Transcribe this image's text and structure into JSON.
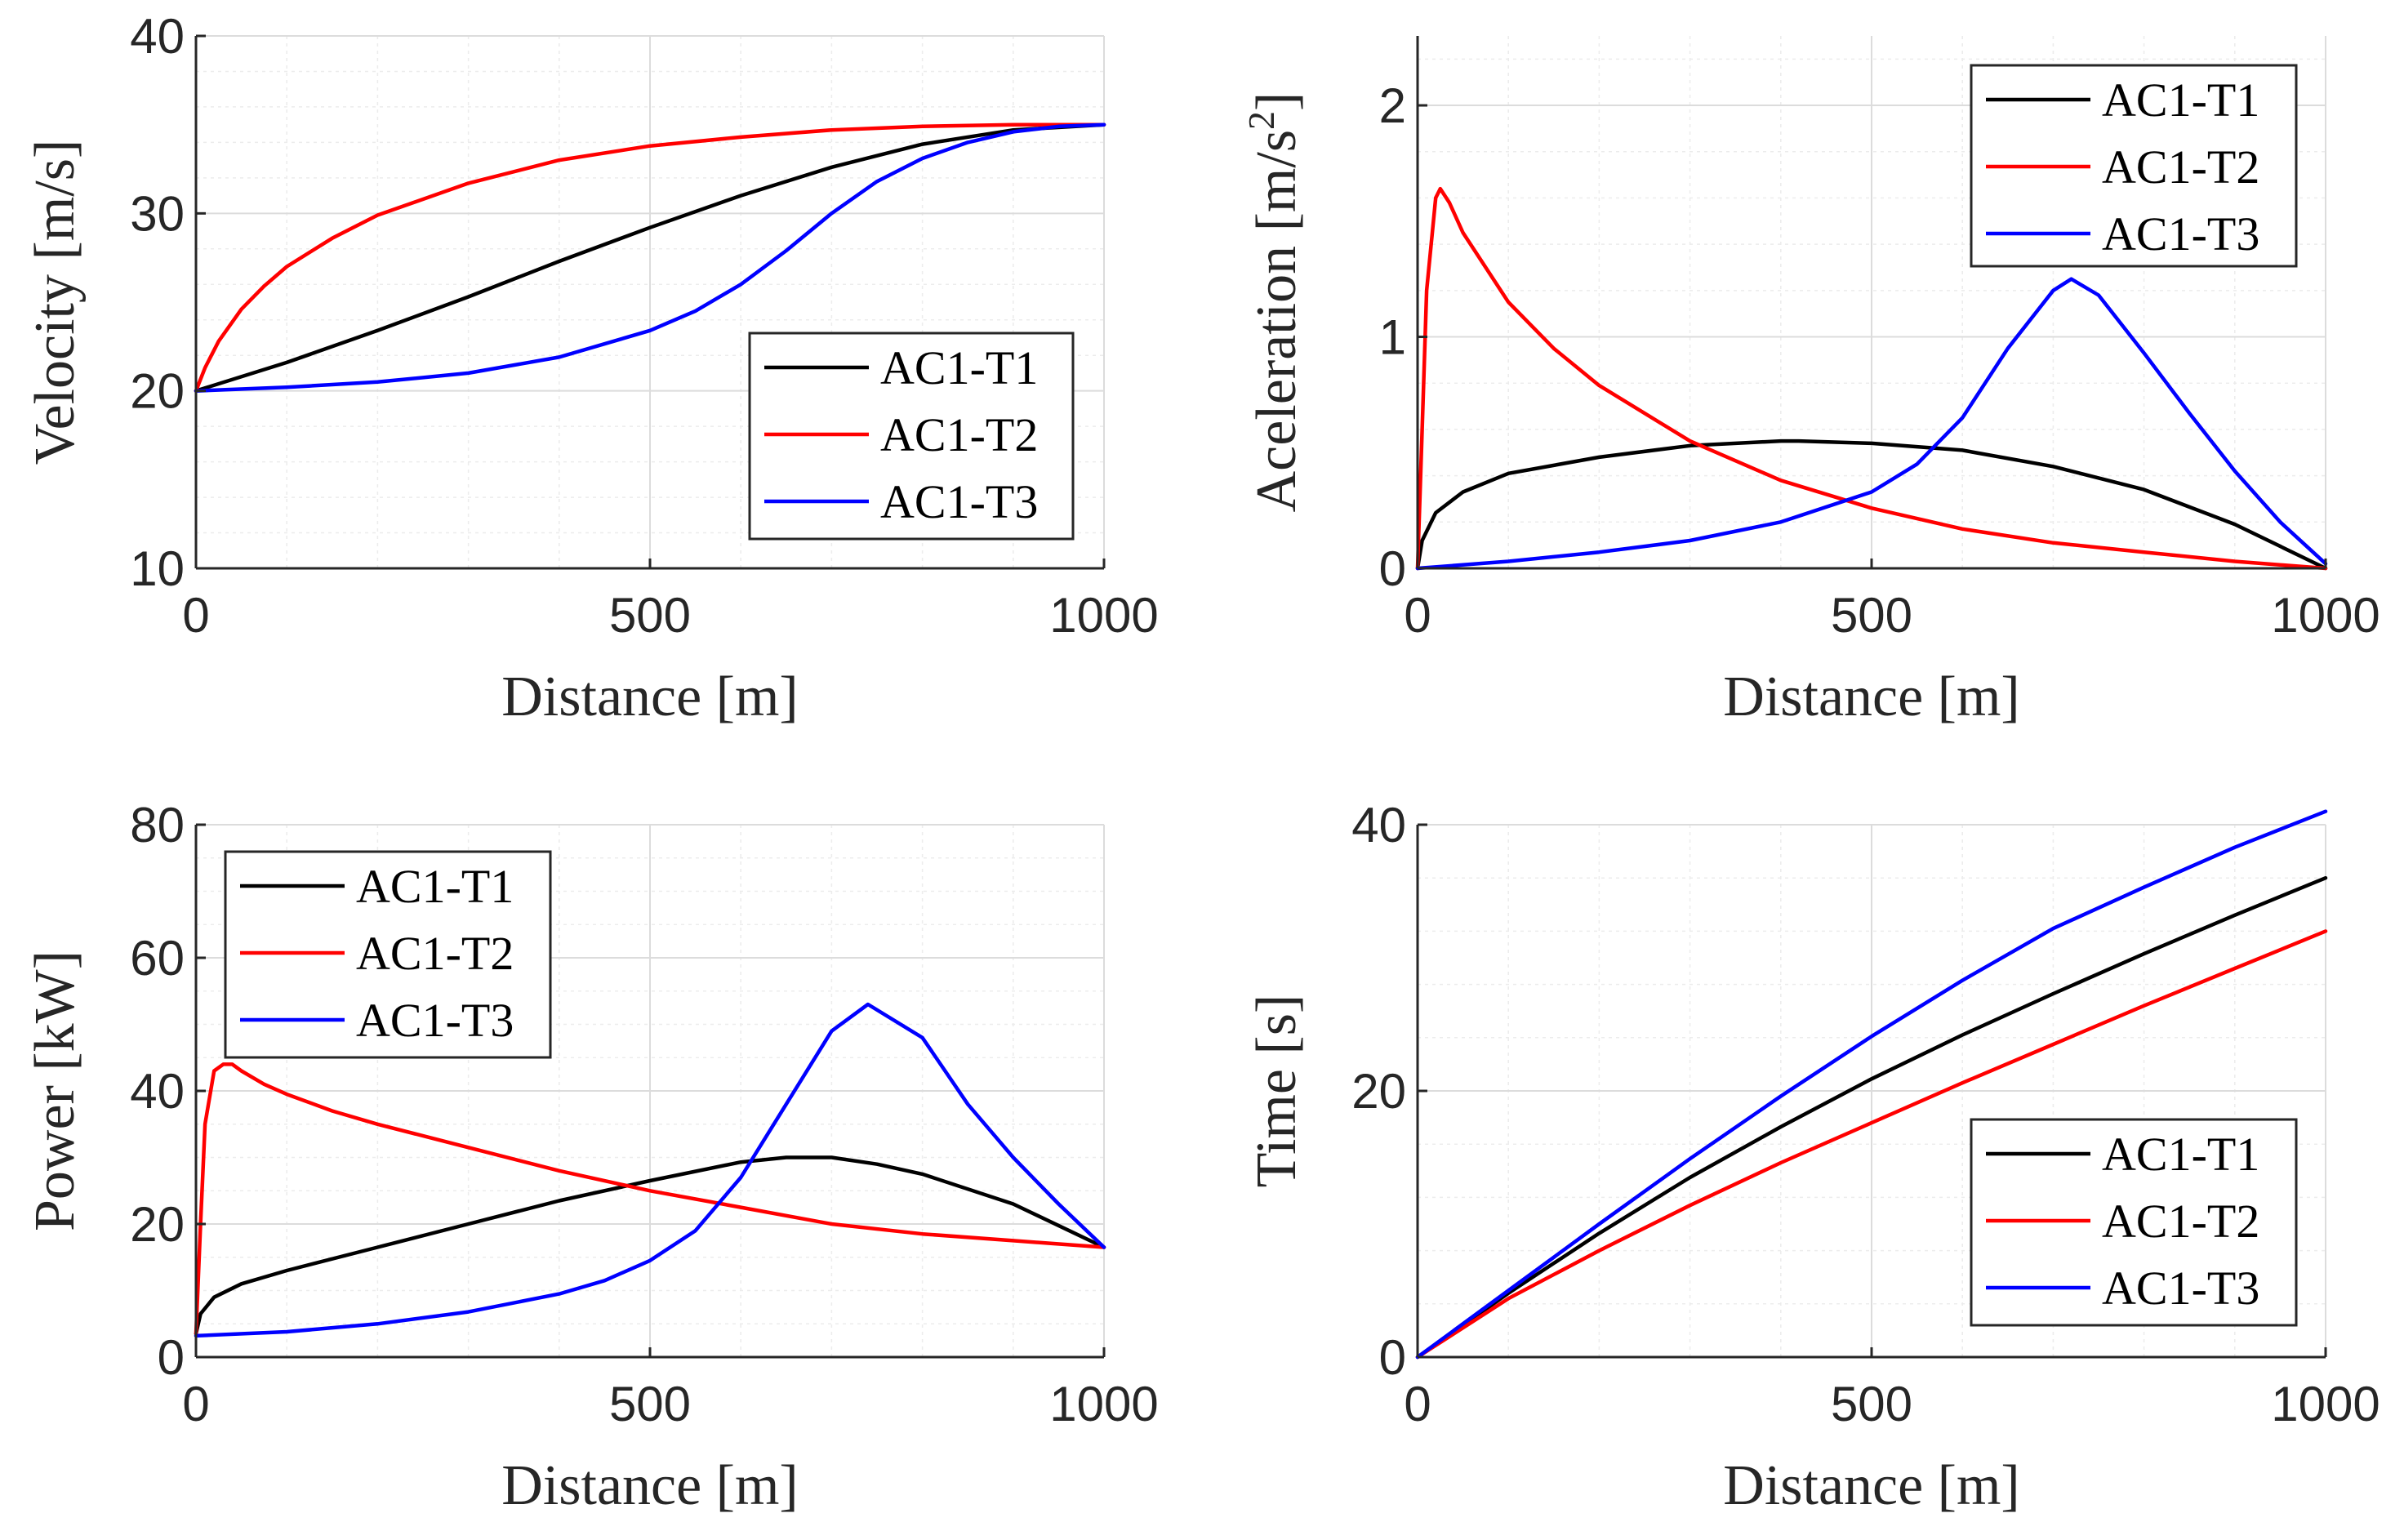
{
  "chart_data": [
    {
      "type": "line",
      "panel": "top-left",
      "xlabel": "Distance [m]",
      "ylabel": "Velocity [m/s]",
      "xlim": [
        0,
        1000
      ],
      "ylim": [
        10,
        40
      ],
      "xticks": [
        0,
        500,
        1000
      ],
      "yticks": [
        10,
        20,
        30,
        40
      ],
      "xminor_step": 100,
      "yminor_step": 2,
      "grid": true,
      "legend_position": "lower-right",
      "series": [
        {
          "name": "AC1-T1",
          "color": "#000000",
          "x": [
            0,
            100,
            200,
            300,
            400,
            500,
            600,
            700,
            800,
            900,
            1000
          ],
          "y": [
            20,
            21.6,
            23.4,
            25.3,
            27.3,
            29.2,
            31.0,
            32.6,
            33.9,
            34.7,
            35.0
          ]
        },
        {
          "name": "AC1-T2",
          "color": "#ff0000",
          "x": [
            0,
            10,
            25,
            50,
            75,
            100,
            150,
            200,
            300,
            400,
            500,
            600,
            700,
            800,
            900,
            1000
          ],
          "y": [
            20,
            21.3,
            22.8,
            24.6,
            25.9,
            27.0,
            28.6,
            29.9,
            31.7,
            33.0,
            33.8,
            34.3,
            34.7,
            34.9,
            35.0,
            35.0
          ]
        },
        {
          "name": "AC1-T3",
          "color": "#0000ff",
          "x": [
            0,
            100,
            200,
            300,
            400,
            500,
            550,
            600,
            650,
            700,
            750,
            800,
            850,
            900,
            950,
            1000
          ],
          "y": [
            20,
            20.2,
            20.5,
            21.0,
            21.9,
            23.4,
            24.5,
            26.0,
            27.9,
            30.0,
            31.8,
            33.1,
            34.0,
            34.6,
            34.9,
            35.0
          ]
        }
      ]
    },
    {
      "type": "line",
      "panel": "top-right",
      "xlabel": "Distance [m]",
      "ylabel": "Aceleration [m/s",
      "ylabel_superscript": "2",
      "ylabel_suffix": "]",
      "xlim": [
        0,
        1000
      ],
      "ylim": [
        0,
        2.3
      ],
      "xticks": [
        0,
        500,
        1000
      ],
      "yticks": [
        0,
        1,
        2
      ],
      "xminor_step": 100,
      "yminor_step": 0.2,
      "grid": true,
      "legend_position": "top-right",
      "series": [
        {
          "name": "AC1-T1",
          "color": "#000000",
          "x": [
            0,
            5,
            20,
            50,
            100,
            200,
            300,
            400,
            420,
            500,
            600,
            700,
            800,
            900,
            1000
          ],
          "y": [
            0.0,
            0.12,
            0.24,
            0.33,
            0.41,
            0.48,
            0.53,
            0.55,
            0.55,
            0.54,
            0.51,
            0.44,
            0.34,
            0.19,
            0.0
          ]
        },
        {
          "name": "AC1-T2",
          "color": "#ff0000",
          "x": [
            0,
            5,
            10,
            20,
            25,
            35,
            50,
            75,
            100,
            150,
            200,
            300,
            400,
            500,
            600,
            700,
            800,
            900,
            1000
          ],
          "y": [
            0.0,
            0.6,
            1.2,
            1.6,
            1.64,
            1.58,
            1.45,
            1.3,
            1.15,
            0.95,
            0.79,
            0.55,
            0.38,
            0.26,
            0.17,
            0.11,
            0.07,
            0.03,
            0.0
          ]
        },
        {
          "name": "AC1-T3",
          "color": "#0000ff",
          "x": [
            0,
            100,
            200,
            300,
            400,
            500,
            550,
            600,
            650,
            700,
            720,
            750,
            800,
            850,
            900,
            950,
            1000
          ],
          "y": [
            0.0,
            0.03,
            0.07,
            0.12,
            0.2,
            0.33,
            0.45,
            0.65,
            0.95,
            1.2,
            1.25,
            1.18,
            0.93,
            0.67,
            0.42,
            0.2,
            0.02
          ]
        }
      ]
    },
    {
      "type": "line",
      "panel": "bottom-left",
      "xlabel": "Distance [m]",
      "ylabel": "Power [kW]",
      "xlim": [
        0,
        1000
      ],
      "ylim": [
        0,
        80
      ],
      "xticks": [
        0,
        500,
        1000
      ],
      "yticks": [
        0,
        20,
        40,
        60,
        80
      ],
      "xminor_step": 100,
      "yminor_step": 5,
      "grid": true,
      "legend_position": "top-left",
      "series": [
        {
          "name": "AC1-T1",
          "color": "#000000",
          "x": [
            0,
            5,
            20,
            50,
            100,
            200,
            300,
            400,
            500,
            600,
            650,
            700,
            750,
            800,
            900,
            1000
          ],
          "y": [
            3.5,
            6.5,
            9.0,
            11.0,
            13.0,
            16.5,
            20.0,
            23.5,
            26.5,
            29.3,
            30.0,
            30.0,
            29.0,
            27.5,
            23.0,
            16.5
          ]
        },
        {
          "name": "AC1-T2",
          "color": "#ff0000",
          "x": [
            0,
            5,
            10,
            20,
            30,
            40,
            50,
            75,
            100,
            150,
            200,
            300,
            400,
            500,
            600,
            700,
            800,
            900,
            1000
          ],
          "y": [
            3.5,
            20.0,
            35.0,
            43.0,
            44.0,
            44.0,
            43.0,
            41.0,
            39.5,
            37.0,
            35.0,
            31.5,
            28.0,
            25.0,
            22.5,
            20.0,
            18.5,
            17.5,
            16.5
          ]
        },
        {
          "name": "AC1-T3",
          "color": "#0000ff",
          "x": [
            0,
            100,
            200,
            300,
            400,
            450,
            500,
            550,
            600,
            650,
            700,
            740,
            800,
            850,
            900,
            950,
            1000
          ],
          "y": [
            3.2,
            3.8,
            5.0,
            6.8,
            9.5,
            11.5,
            14.5,
            19.0,
            27.0,
            38.0,
            49.0,
            53.0,
            48.0,
            38.0,
            30.0,
            23.0,
            16.5
          ]
        }
      ]
    },
    {
      "type": "line",
      "panel": "bottom-right",
      "xlabel": "Distance [m]",
      "ylabel": "Time [s]",
      "xlim": [
        0,
        1000
      ],
      "ylim": [
        0,
        40
      ],
      "xticks": [
        0,
        500,
        1000
      ],
      "yticks": [
        0,
        20,
        40
      ],
      "xminor_step": 100,
      "yminor_step": 4,
      "grid": true,
      "legend_position": "bottom-right",
      "series": [
        {
          "name": "AC1-T1",
          "color": "#000000",
          "x": [
            0,
            100,
            200,
            300,
            400,
            500,
            600,
            700,
            800,
            900,
            1000
          ],
          "y": [
            0,
            4.8,
            9.3,
            13.5,
            17.3,
            20.9,
            24.2,
            27.3,
            30.3,
            33.2,
            36.0
          ]
        },
        {
          "name": "AC1-T2",
          "color": "#ff0000",
          "x": [
            0,
            100,
            200,
            300,
            400,
            500,
            600,
            700,
            800,
            900,
            1000
          ],
          "y": [
            0,
            4.4,
            8.0,
            11.4,
            14.6,
            17.6,
            20.6,
            23.5,
            26.4,
            29.2,
            32.0
          ]
        },
        {
          "name": "AC1-T3",
          "color": "#0000ff",
          "x": [
            0,
            100,
            200,
            300,
            400,
            500,
            600,
            700,
            800,
            900,
            1000
          ],
          "y": [
            0,
            5.0,
            10.0,
            14.9,
            19.6,
            24.1,
            28.3,
            32.2,
            35.3,
            38.3,
            41.0
          ]
        }
      ]
    }
  ]
}
